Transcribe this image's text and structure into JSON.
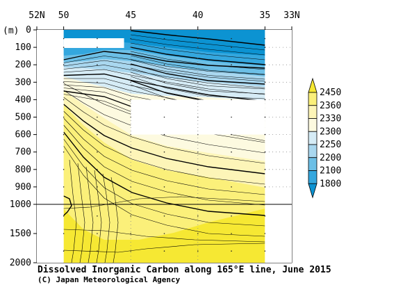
{
  "chart_data": {
    "type": "contour",
    "title": "Dissolved Inorganic Carbon along 165°E line, June 2015",
    "credit": "(C) Japan Meteorological Agency",
    "y_unit_label": "(m)",
    "x_ticks": [
      {
        "lat": 52,
        "label": "52N"
      },
      {
        "lat": 50,
        "label": "50"
      },
      {
        "lat": 45,
        "label": "45"
      },
      {
        "lat": 40,
        "label": "40"
      },
      {
        "lat": 35,
        "label": "35"
      },
      {
        "lat": 33,
        "label": "33N"
      }
    ],
    "y_ticks_upper": [
      {
        "depth": 0,
        "label": "0"
      },
      {
        "depth": 100,
        "label": "100"
      },
      {
        "depth": 200,
        "label": "200"
      },
      {
        "depth": 300,
        "label": "300"
      },
      {
        "depth": 400,
        "label": "400"
      },
      {
        "depth": 500,
        "label": "500"
      },
      {
        "depth": 600,
        "label": "600"
      },
      {
        "depth": 700,
        "label": "700"
      },
      {
        "depth": 800,
        "label": "800"
      },
      {
        "depth": 900,
        "label": "900"
      },
      {
        "depth": 1000,
        "label": "1000"
      }
    ],
    "y_ticks_lower": [
      {
        "depth": 1500,
        "label": "1500"
      },
      {
        "depth": 2000,
        "label": "2000"
      }
    ],
    "x_range": [
      52,
      33
    ],
    "y_range_upper": [
      0,
      1000
    ],
    "y_range_lower": [
      1000,
      2000
    ],
    "colorbar": {
      "labels": [
        "2450",
        "2360",
        "2330",
        "2300",
        "2250",
        "2200",
        "2100",
        "1800"
      ],
      "colors": [
        "#f6e833",
        "#fbf07a",
        "#fdf5b8",
        "#fdfae0",
        "#d6ecf6",
        "#a9d7ef",
        "#6cbfe6",
        "#34a7de",
        "#0c93d2"
      ]
    },
    "sections": [
      {
        "lat_from": 50,
        "lat_to": 35,
        "depth_from": 0,
        "depth_to": 120,
        "value_range": [
          1800,
          2100
        ]
      },
      {
        "lat_from": 50,
        "lat_to": 35,
        "depth_from": 120,
        "depth_to": 400,
        "value_range": [
          2100,
          2300
        ]
      },
      {
        "lat_from": 50,
        "lat_to": 35,
        "depth_from": 300,
        "depth_to": 900,
        "value_range": [
          2300,
          2360
        ]
      },
      {
        "lat_from": 50,
        "lat_to": 35,
        "depth_from": 700,
        "depth_to": 2000,
        "value_range": [
          2360,
          2450
        ]
      }
    ]
  }
}
